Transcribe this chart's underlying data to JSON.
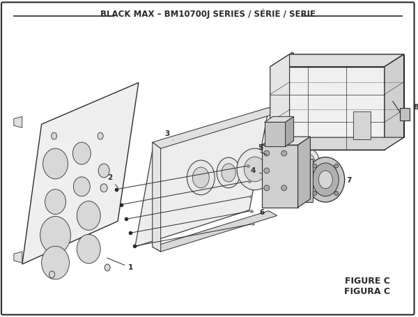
{
  "title": "BLACK MAX – BM10700J SERIES / SÉRIE / SERIE",
  "figure_label": "FIGURE C",
  "figura_label": "FIGURA C",
  "bg_color": "#ffffff",
  "line_color": "#2a2a2a",
  "fig_width": 6.0,
  "fig_height": 4.55,
  "dpi": 100
}
